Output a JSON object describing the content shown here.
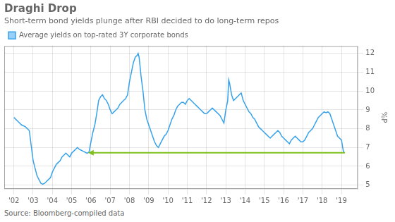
{
  "chart_data": {
    "type": "line",
    "title": "Draghi Drop",
    "subtitle": "Short-term bond yields plunge after RBI decided to do long-term repos",
    "source": "Source: Bloomberg-compiled data",
    "y_label": "%P",
    "legend": "top",
    "grid": true,
    "xlim": [
      2001.5,
      2019.85
    ],
    "xticks": [
      {
        "value": 2002,
        "label": "'02"
      },
      {
        "value": 2003,
        "label": "'03"
      },
      {
        "value": 2004,
        "label": "'04"
      },
      {
        "value": 2005,
        "label": "'05"
      },
      {
        "value": 2006,
        "label": "'06"
      },
      {
        "value": 2007,
        "label": "'07"
      },
      {
        "value": 2008,
        "label": "'08"
      },
      {
        "value": 2009,
        "label": "'09"
      },
      {
        "value": 2010,
        "label": "'10"
      },
      {
        "value": 2011,
        "label": "'11"
      },
      {
        "value": 2012,
        "label": "'12"
      },
      {
        "value": 2013,
        "label": "'13"
      },
      {
        "value": 2014,
        "label": "'14"
      },
      {
        "value": 2015,
        "label": "'15"
      },
      {
        "value": 2016,
        "label": "'16"
      },
      {
        "value": 2017,
        "label": "'17"
      },
      {
        "value": 2018,
        "label": "'18"
      },
      {
        "value": 2019,
        "label": "'19"
      }
    ],
    "ylim": [
      4.8,
      12.4
    ],
    "yticks": [
      5,
      6,
      7,
      8,
      9,
      10,
      11,
      12
    ],
    "annotations": [
      {
        "type": "arrow",
        "x": 2019.18,
        "x_end": 2005.85,
        "y": 6.72,
        "color": "#7fc01e"
      }
    ],
    "x": [
      2002.0,
      2002.2,
      2002.4,
      2002.6,
      2002.8,
      2003.0,
      2003.1,
      2003.2,
      2003.3,
      2003.4,
      2003.5,
      2003.6,
      2003.7,
      2003.8,
      2003.9,
      2004.0,
      2004.1,
      2004.2,
      2004.3,
      2004.4,
      2004.5,
      2004.6,
      2004.7,
      2004.8,
      2004.9,
      2005.0,
      2005.1,
      2005.2,
      2005.3,
      2005.4,
      2005.5,
      2005.6,
      2005.7,
      2005.8,
      2005.9,
      2006.0,
      2006.1,
      2006.2,
      2006.3,
      2006.4,
      2006.5,
      2006.6,
      2006.7,
      2006.8,
      2006.9,
      2007.0,
      2007.1,
      2007.2,
      2007.3,
      2007.4,
      2007.5,
      2007.6,
      2007.7,
      2007.8,
      2007.9,
      2008.0,
      2008.1,
      2008.2,
      2008.3,
      2008.4,
      2008.45,
      2008.5,
      2008.6,
      2008.7,
      2008.8,
      2008.9,
      2009.0,
      2009.1,
      2009.2,
      2009.3,
      2009.4,
      2009.5,
      2009.6,
      2009.7,
      2009.8,
      2009.9,
      2010.0,
      2010.1,
      2010.2,
      2010.3,
      2010.4,
      2010.5,
      2010.6,
      2010.7,
      2010.8,
      2010.9,
      2011.0,
      2011.1,
      2011.2,
      2011.3,
      2011.4,
      2011.5,
      2011.6,
      2011.7,
      2011.8,
      2011.9,
      2012.0,
      2012.1,
      2012.2,
      2012.3,
      2012.4,
      2012.5,
      2012.6,
      2012.7,
      2012.8,
      2012.9,
      2013.0,
      2013.1,
      2013.15,
      2013.2,
      2013.3,
      2013.4,
      2013.5,
      2013.6,
      2013.7,
      2013.8,
      2013.9,
      2014.0,
      2014.1,
      2014.2,
      2014.3,
      2014.4,
      2014.5,
      2014.6,
      2014.7,
      2014.8,
      2014.9,
      2015.0,
      2015.1,
      2015.2,
      2015.3,
      2015.4,
      2015.5,
      2015.6,
      2015.7,
      2015.8,
      2015.9,
      2016.0,
      2016.1,
      2016.2,
      2016.3,
      2016.4,
      2016.5,
      2016.6,
      2016.7,
      2016.8,
      2016.9,
      2017.0,
      2017.1,
      2017.2,
      2017.3,
      2017.4,
      2017.5,
      2017.6,
      2017.7,
      2017.8,
      2017.9,
      2018.0,
      2018.1,
      2018.2,
      2018.3,
      2018.4,
      2018.5,
      2018.6,
      2018.7,
      2018.8,
      2018.9,
      2019.0,
      2019.05,
      2019.1,
      2019.15
    ],
    "series": [
      {
        "name": "Average yields on top-rated 3Y corporate bonds",
        "values": [
          8.6,
          8.4,
          8.2,
          8.1,
          7.9,
          6.3,
          5.9,
          5.5,
          5.3,
          5.1,
          5.05,
          5.1,
          5.2,
          5.3,
          5.4,
          5.7,
          5.9,
          6.1,
          6.2,
          6.3,
          6.5,
          6.6,
          6.7,
          6.6,
          6.5,
          6.7,
          6.8,
          6.9,
          7.0,
          6.9,
          6.85,
          6.8,
          6.75,
          6.7,
          6.75,
          7.3,
          7.8,
          8.2,
          8.8,
          9.5,
          9.7,
          9.8,
          9.6,
          9.5,
          9.3,
          9.0,
          8.8,
          8.9,
          9.0,
          9.1,
          9.3,
          9.4,
          9.5,
          9.6,
          9.8,
          10.5,
          11.0,
          11.5,
          11.8,
          11.9,
          12.0,
          11.8,
          10.8,
          10.0,
          9.0,
          8.5,
          8.2,
          7.9,
          7.6,
          7.3,
          7.1,
          7.0,
          7.2,
          7.4,
          7.6,
          7.7,
          7.9,
          8.2,
          8.5,
          8.7,
          9.0,
          9.2,
          9.3,
          9.4,
          9.4,
          9.3,
          9.5,
          9.6,
          9.5,
          9.4,
          9.3,
          9.2,
          9.1,
          9.0,
          8.9,
          8.8,
          8.8,
          8.9,
          9.0,
          9.1,
          9.0,
          8.9,
          8.8,
          8.7,
          8.5,
          8.3,
          9.0,
          9.5,
          10.6,
          10.4,
          9.8,
          9.5,
          9.6,
          9.7,
          9.8,
          9.9,
          9.5,
          9.3,
          9.1,
          8.9,
          8.8,
          8.6,
          8.5,
          8.3,
          8.1,
          8.0,
          7.9,
          7.8,
          7.7,
          7.6,
          7.5,
          7.6,
          7.7,
          7.8,
          7.9,
          7.8,
          7.6,
          7.5,
          7.4,
          7.3,
          7.2,
          7.4,
          7.5,
          7.6,
          7.5,
          7.4,
          7.3,
          7.3,
          7.4,
          7.6,
          7.8,
          7.9,
          8.0,
          8.2,
          8.4,
          8.6,
          8.7,
          8.8,
          8.9,
          8.85,
          8.9,
          8.8,
          8.5,
          8.2,
          7.9,
          7.6,
          7.5,
          7.4,
          7.1,
          6.8,
          6.72
        ]
      }
    ]
  }
}
